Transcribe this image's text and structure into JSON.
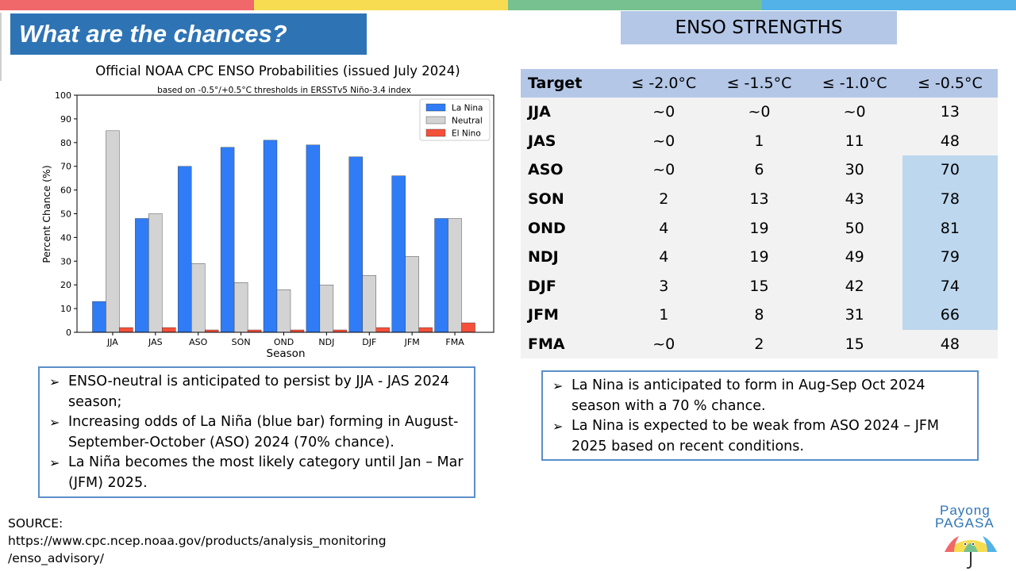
{
  "slide": {
    "title": "What are the chances?",
    "topbar_colors": [
      "#f0686a",
      "#f7dc51",
      "#77c190",
      "#53b2e7"
    ]
  },
  "chart_data": {
    "type": "bar",
    "title": "Official NOAA CPC ENSO Probabilities (issued July 2024)",
    "subtitle": "based on -0.5°/+0.5°C thresholds in ERSSTv5 Niño-3.4 index",
    "xlabel": "Season",
    "ylabel": "Percent Chance (%)",
    "ylim": [
      0,
      100
    ],
    "yticks": [
      "0",
      "10",
      "20",
      "30",
      "40",
      "50",
      "60",
      "70",
      "80",
      "90",
      "100"
    ],
    "categories": [
      "JJA",
      "JAS",
      "ASO",
      "SON",
      "OND",
      "NDJ",
      "DJF",
      "JFM",
      "FMA"
    ],
    "legend_position": "top-right",
    "series": [
      {
        "name": "La Nina",
        "color": "#2f7cf6",
        "values": [
          13,
          48,
          70,
          78,
          81,
          79,
          74,
          66,
          48
        ]
      },
      {
        "name": "Neutral",
        "color": "#d3d3d3",
        "values": [
          85,
          50,
          29,
          21,
          18,
          20,
          24,
          32,
          48
        ]
      },
      {
        "name": "El Nino",
        "color": "#f5503b",
        "values": [
          2,
          2,
          1,
          1,
          1,
          1,
          2,
          2,
          4
        ]
      }
    ]
  },
  "enso_strengths": {
    "heading": "ENSO STRENGTHS",
    "headers": [
      "Target",
      "≤ -2.0°C",
      "≤ -1.5°C",
      "≤ -1.0°C",
      "≤ -0.5°C"
    ],
    "rows": [
      {
        "cells": [
          "JJA",
          "~0",
          "~0",
          "~0",
          "13"
        ],
        "highlight": false
      },
      {
        "cells": [
          "JAS",
          "~0",
          "1",
          "11",
          "48"
        ],
        "highlight": false
      },
      {
        "cells": [
          "ASO",
          "~0",
          "6",
          "30",
          "70"
        ],
        "highlight": true
      },
      {
        "cells": [
          "SON",
          "2",
          "13",
          "43",
          "78"
        ],
        "highlight": true
      },
      {
        "cells": [
          "OND",
          "4",
          "19",
          "50",
          "81"
        ],
        "highlight": true
      },
      {
        "cells": [
          "NDJ",
          "4",
          "19",
          "49",
          "79"
        ],
        "highlight": true
      },
      {
        "cells": [
          "DJF",
          "3",
          "15",
          "42",
          "74"
        ],
        "highlight": true
      },
      {
        "cells": [
          "JFM",
          "1",
          "8",
          "31",
          "66"
        ],
        "highlight": true
      },
      {
        "cells": [
          "FMA",
          "~0",
          "2",
          "15",
          "48"
        ],
        "highlight": false
      }
    ]
  },
  "notes_left": [
    "ENSO-neutral is anticipated to persist by JJA - JAS 2024 season;",
    "Increasing odds of La Niña (blue bar) forming in August-September-October  (ASO) 2024 (70% chance).",
    "La Niña becomes the most likely category until Jan – Mar (JFM) 2025."
  ],
  "notes_right": [
    "La Nina is anticipated to form in Aug-Sep Oct 2024 season with a 70 % chance.",
    "La Nina is expected to be weak from ASO 2024 – JFM 2025 based on recent conditions."
  ],
  "source": {
    "label": "SOURCE:",
    "url_line1": "https://www.cpc.ncep.noaa.gov/products/analysis_monitoring",
    "url_line2": "/enso_advisory/"
  },
  "logo": {
    "line1": "Payong",
    "line2": "PAGASA",
    "icon": "umbrella-icon"
  }
}
